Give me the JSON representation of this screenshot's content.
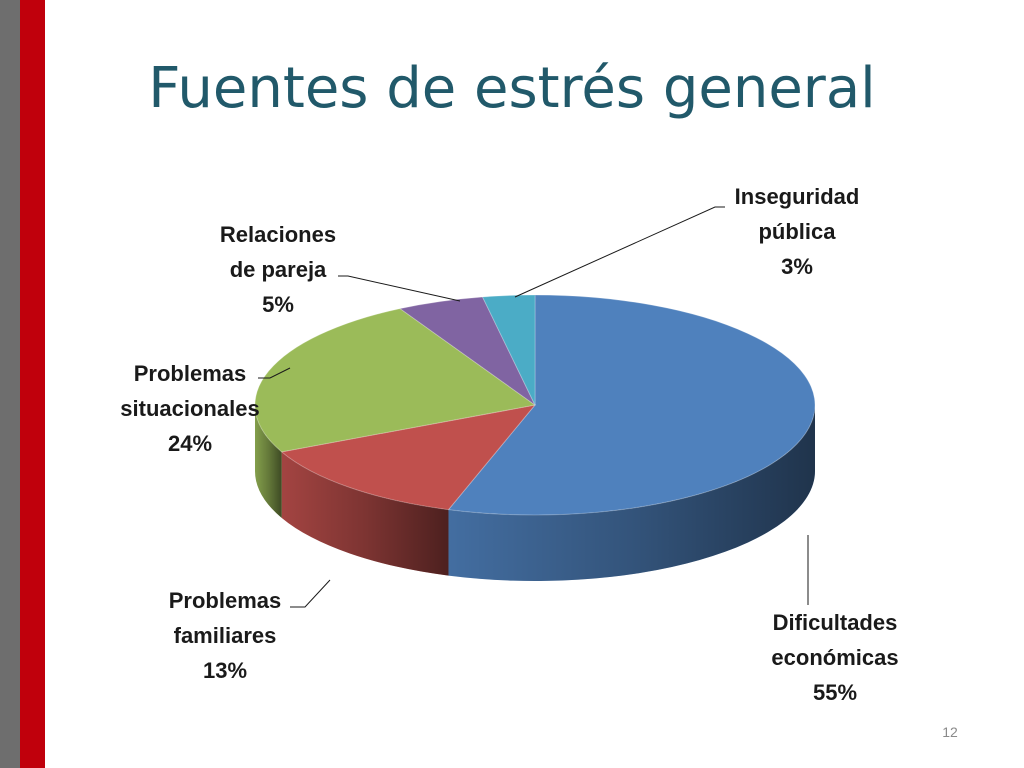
{
  "slide": {
    "title": "Fuentes de estrés general",
    "page_number": "12"
  },
  "chart_data": {
    "type": "pie",
    "title": "Fuentes de estrés general",
    "three_d": true,
    "slices": [
      {
        "name": "Dificultades económicas",
        "label_lines": [
          "Dificultades",
          "económicas"
        ],
        "value": 55,
        "value_label": "55%",
        "color": "#4f81bd"
      },
      {
        "name": "Problemas familiares",
        "label_lines": [
          "Problemas",
          "familiares"
        ],
        "value": 13,
        "value_label": "13%",
        "color": "#c0504d"
      },
      {
        "name": "Problemas situacionales",
        "label_lines": [
          "Problemas",
          "situacionales"
        ],
        "value": 24,
        "value_label": "24%",
        "color": "#9bbb59"
      },
      {
        "name": "Relaciones de pareja",
        "label_lines": [
          "Relaciones",
          "de pareja"
        ],
        "value": 5,
        "value_label": "5%",
        "color": "#8064a2"
      },
      {
        "name": "Inseguridad pública",
        "label_lines": [
          "Inseguridad",
          "pública"
        ],
        "value": 3,
        "value_label": "3%",
        "color": "#4bacc6"
      }
    ]
  }
}
